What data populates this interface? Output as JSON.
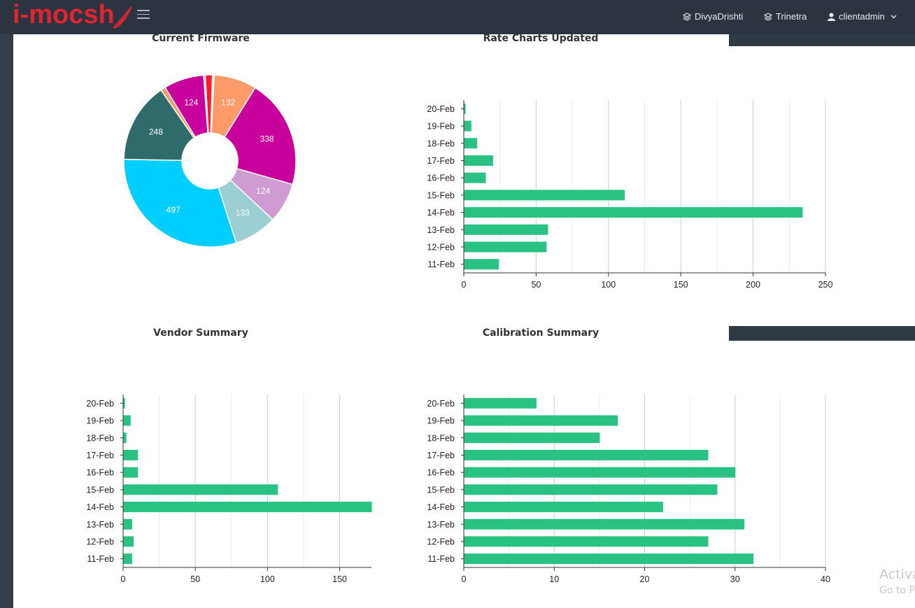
{
  "header": {
    "logo_text": "i-mocsh",
    "nav": [
      {
        "label": "DivyaDrishti",
        "icon": "layers-icon"
      },
      {
        "label": "Trinetra",
        "icon": "layers-icon"
      },
      {
        "label": "clientadmin",
        "icon": "user-icon"
      }
    ]
  },
  "watermark": {
    "line1": "Activa",
    "line2": "Go to P"
  },
  "colors": {
    "bar": "#29c282",
    "topbar": "#2b3440",
    "logo": "#e02430"
  },
  "chart_data": [
    {
      "type": "pie",
      "title": "Current Firmware",
      "donut": true,
      "slices": [
        {
          "value": 132,
          "label": "132",
          "color": "#fe9b68"
        },
        {
          "value": 338,
          "label": "338",
          "color": "#c8009c"
        },
        {
          "value": 124,
          "label": "124",
          "color": "#cf9bd3"
        },
        {
          "value": 133,
          "label": "133",
          "color": "#9bcfd3"
        },
        {
          "value": 497,
          "label": "497",
          "color": "#00ceff"
        },
        {
          "value": 248,
          "label": "248",
          "color": "#2e6b6a"
        },
        {
          "value": 15,
          "label": "",
          "color": "#fe9b68"
        },
        {
          "value": 124,
          "label": "124",
          "color": "#c8009c"
        },
        {
          "value": 5,
          "label": "",
          "color": "#cf9bd3"
        },
        {
          "value": 22,
          "label": "",
          "color": "#ff1b2d"
        },
        {
          "value": 5,
          "label": "",
          "color": "#cfcfcf"
        }
      ]
    },
    {
      "type": "bar",
      "orientation": "horizontal",
      "title": "Rate Charts Updated",
      "categories": [
        "20-Feb",
        "19-Feb",
        "18-Feb",
        "17-Feb",
        "16-Feb",
        "15-Feb",
        "14-Feb",
        "13-Feb",
        "12-Feb",
        "11-Feb"
      ],
      "values": [
        1,
        5,
        9,
        20,
        15,
        111,
        234,
        58,
        57,
        24
      ],
      "xlim": [
        0,
        250
      ],
      "ticks": [
        0,
        50,
        100,
        150,
        200,
        250
      ],
      "grid": true
    },
    {
      "type": "bar",
      "orientation": "horizontal",
      "title": "Vendor Summary",
      "categories": [
        "20-Feb",
        "19-Feb",
        "18-Feb",
        "17-Feb",
        "16-Feb",
        "15-Feb",
        "14-Feb",
        "13-Feb",
        "12-Feb",
        "11-Feb"
      ],
      "values": [
        1,
        5,
        2,
        10,
        10,
        107,
        172,
        6,
        7,
        6
      ],
      "xlim": [
        0,
        172
      ],
      "ticks": [
        0,
        50,
        100,
        150
      ],
      "grid": true
    },
    {
      "type": "bar",
      "orientation": "horizontal",
      "title": "Calibration Summary",
      "categories": [
        "20-Feb",
        "19-Feb",
        "18-Feb",
        "17-Feb",
        "16-Feb",
        "15-Feb",
        "14-Feb",
        "13-Feb",
        "12-Feb",
        "11-Feb"
      ],
      "values": [
        8,
        17,
        15,
        27,
        30,
        28,
        22,
        31,
        27,
        32
      ],
      "xlim": [
        0,
        40
      ],
      "ticks": [
        0,
        10,
        20,
        30,
        40
      ],
      "grid": true
    }
  ]
}
